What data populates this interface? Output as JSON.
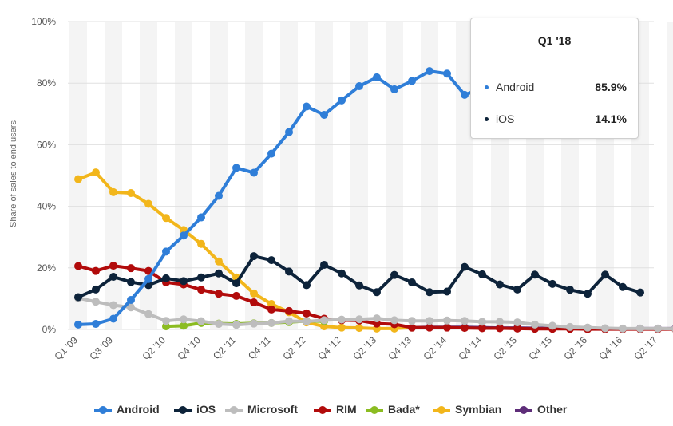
{
  "chart_data": {
    "type": "line",
    "ylabel": "Share of sales to end users",
    "ylim": [
      0,
      100
    ],
    "y_ticks": [
      "0%",
      "20%",
      "40%",
      "60%",
      "80%",
      "100%"
    ],
    "x": [
      "Q1 '09",
      "Q2 '09",
      "Q3 '09",
      "Q4 '09",
      "Q1 '10",
      "Q2 '10",
      "Q3 '10",
      "Q4 '10",
      "Q1 '11",
      "Q2 '11",
      "Q3 '11",
      "Q4 '11",
      "Q1 '12",
      "Q2 '12",
      "Q3 '12",
      "Q4 '12",
      "Q1 '13",
      "Q2 '13",
      "Q3 '13",
      "Q4 '13",
      "Q1 '14",
      "Q2 '14",
      "Q3 '14",
      "Q4 '14",
      "Q1 '15",
      "Q2 '15",
      "Q3 '15",
      "Q4 '15",
      "Q1 '16",
      "Q2 '16",
      "Q3 '16",
      "Q4 '16",
      "Q1 '17",
      "Q2 '17",
      "Q3 '17",
      "Q4 '17",
      "Q1 '18"
    ],
    "x_tick_labels": [
      "Q1 '09",
      "Q3 '09",
      "Q2 '10",
      "Q4 '10",
      "Q2 '11",
      "Q4 '11",
      "Q2 '12",
      "Q4 '12",
      "Q2 '13",
      "Q4 '13",
      "Q2 '14",
      "Q4 '14",
      "Q2 '15",
      "Q4 '15",
      "Q2 '16",
      "Q4 '16",
      "Q2 '17"
    ],
    "series": [
      {
        "name": "Android",
        "color": "#2f7ed8",
        "values": [
          1.6,
          1.8,
          3.5,
          9.6,
          16.4,
          25.3,
          30.5,
          36.4,
          43.4,
          52.5,
          50.9,
          57.1,
          64.1,
          72.4,
          69.7,
          74.4,
          79.0,
          81.9,
          78.0,
          80.7,
          83.9,
          83.1,
          76.2,
          78.4,
          null,
          null,
          null,
          null,
          null,
          null,
          null,
          null,
          null,
          null,
          null,
          null,
          85.9
        ]
      },
      {
        "name": "iOS",
        "color": "#0d233a",
        "values": [
          10.5,
          13.0,
          17.1,
          15.4,
          14.4,
          16.6,
          15.7,
          16.9,
          18.2,
          15.0,
          23.8,
          22.5,
          18.8,
          14.4,
          21.0,
          18.2,
          14.3,
          12.1,
          17.7,
          15.3,
          12.1,
          12.3,
          20.3,
          17.9,
          14.6,
          13.0,
          17.8,
          14.8,
          12.9,
          11.6,
          17.8,
          13.8,
          12.0,
          null,
          null,
          null,
          14.1
        ]
      },
      {
        "name": "Microsoft",
        "color": "#bdbdbd",
        "values": [
          10.2,
          9.0,
          7.9,
          7.2,
          5.0,
          2.8,
          3.3,
          2.7,
          1.8,
          1.5,
          1.9,
          2.1,
          2.7,
          2.6,
          3.0,
          3.2,
          3.3,
          3.6,
          3.0,
          2.8,
          2.8,
          2.9,
          2.8,
          2.5,
          2.5,
          2.3,
          1.6,
          1.2,
          0.8,
          0.6,
          0.4,
          0.3,
          0.3,
          0.3,
          0.2,
          0.2,
          null
        ]
      },
      {
        "name": "RIM",
        "color": "#b20b0b",
        "values": [
          20.6,
          19.0,
          20.7,
          19.9,
          19.0,
          15.3,
          14.6,
          12.9,
          11.6,
          10.9,
          8.8,
          6.5,
          6.0,
          5.2,
          3.5,
          3.0,
          2.9,
          1.9,
          1.7,
          0.6,
          0.6,
          0.6,
          0.5,
          0.4,
          0.4,
          0.3,
          0.2,
          0.2,
          0.2,
          0.1,
          0.1,
          0.1,
          0.1,
          0.1,
          0.1,
          0.1,
          null
        ]
      },
      {
        "name": "Bada*",
        "color": "#8bbc21",
        "values": [
          null,
          null,
          null,
          null,
          null,
          1.0,
          1.2,
          2.1,
          1.9,
          1.8,
          2.0,
          2.1,
          2.4,
          2.7,
          2.7,
          null,
          null,
          null,
          null,
          null,
          null,
          null,
          null,
          null,
          null,
          null,
          null,
          null,
          null,
          null,
          null,
          null,
          null,
          null,
          null,
          null,
          null
        ]
      },
      {
        "name": "Symbian",
        "color": "#f2b61b",
        "values": [
          48.8,
          51.0,
          44.6,
          44.3,
          40.8,
          36.2,
          32.3,
          27.8,
          22.1,
          16.9,
          11.7,
          8.3,
          5.6,
          2.3,
          1.0,
          0.6,
          0.5,
          0.3,
          0.3,
          0.6,
          null,
          null,
          null,
          null,
          null,
          null,
          null,
          null,
          null,
          null,
          null,
          null,
          null,
          null,
          null,
          null,
          null
        ]
      },
      {
        "name": "Other",
        "color": "#5e2d79",
        "values": [
          null,
          null,
          null,
          null,
          null,
          null,
          null,
          null,
          null,
          null,
          null,
          null,
          null,
          null,
          null,
          null,
          null,
          null,
          null,
          0.6,
          0.7,
          0.7,
          0.7,
          0.6,
          0.5,
          0.5,
          0.4,
          0.4,
          0.4,
          0.3,
          0.3,
          0.2,
          0.3,
          0.3,
          0.3,
          0.3,
          null
        ]
      }
    ],
    "legend_position": "bottom-center",
    "grid": true
  },
  "tooltip": {
    "title": "Q1 '18",
    "rows": [
      {
        "name": "Android",
        "value": "85.9%",
        "color": "#2f7ed8"
      },
      {
        "name": "iOS",
        "value": "14.1%",
        "color": "#0d233a"
      }
    ]
  },
  "legend": [
    {
      "name": "Android",
      "color": "#2f7ed8"
    },
    {
      "name": "iOS",
      "color": "#0d233a"
    },
    {
      "name": "Microsoft",
      "color": "#bdbdbd"
    },
    {
      "name": "RIM",
      "color": "#b20b0b"
    },
    {
      "name": "Bada*",
      "color": "#8bbc21"
    },
    {
      "name": "Symbian",
      "color": "#f2b61b"
    },
    {
      "name": "Other",
      "color": "#5e2d79"
    }
  ]
}
